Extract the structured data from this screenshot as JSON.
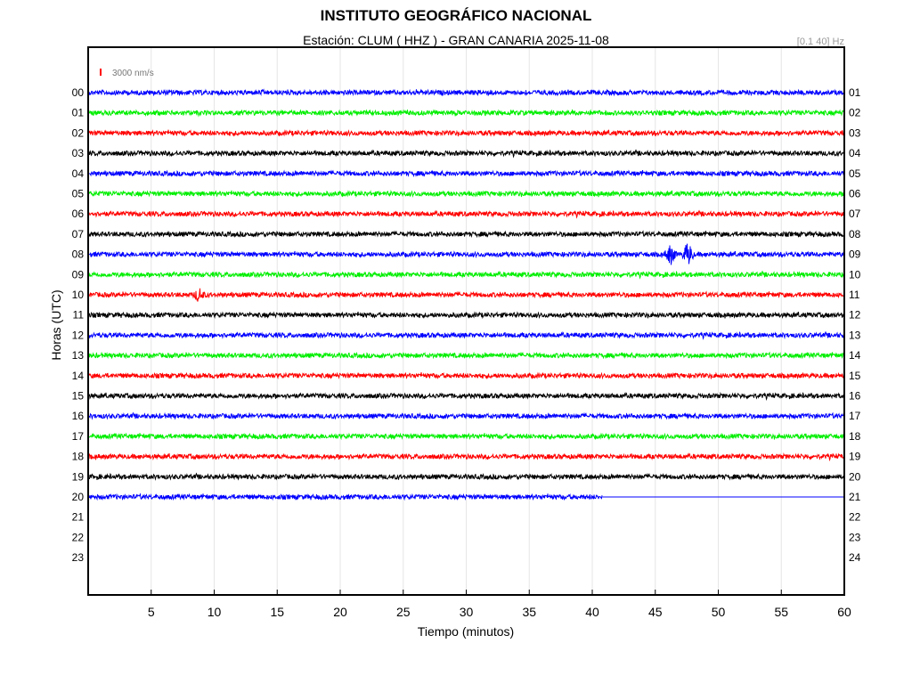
{
  "chart_data": {
    "type": "line",
    "title": "INSTITUTO GEOGRÁFICO NACIONAL",
    "station_label": "Estación:",
    "station": "CLUM ( HHZ ) - GRAN CANARIA",
    "date": "2025-11-08",
    "filter": "[0.1 40] Hz",
    "scale_label": "3000 nm/s",
    "xlabel": "Tiempo (minutos)",
    "ylabel": "Horas (UTC)",
    "xlim": [
      0,
      60
    ],
    "x_ticks": [
      5,
      10,
      15,
      20,
      25,
      30,
      35,
      40,
      45,
      50,
      55,
      60
    ],
    "left_hour_labels": [
      "00",
      "01",
      "02",
      "03",
      "04",
      "05",
      "06",
      "07",
      "08",
      "09",
      "10",
      "11",
      "12",
      "13",
      "14",
      "15",
      "16",
      "17",
      "18",
      "19",
      "20",
      "21",
      "22",
      "23"
    ],
    "right_hour_labels": [
      "01",
      "02",
      "03",
      "04",
      "05",
      "06",
      "07",
      "08",
      "09",
      "10",
      "11",
      "12",
      "13",
      "14",
      "15",
      "16",
      "17",
      "18",
      "19",
      "20",
      "21",
      "22",
      "23",
      "24"
    ],
    "grid": true,
    "trace_colors": [
      "#0000ff",
      "#00ee00",
      "#ff0000",
      "#000000"
    ],
    "data_end_hour": 20,
    "data_end_minute": 40.8,
    "events": [
      {
        "hour": 8,
        "minute": 46.2,
        "amplitude": 2.6
      },
      {
        "hour": 8,
        "minute": 47.6,
        "amplitude": 3.2
      },
      {
        "hour": 10,
        "minute": 8.8,
        "amplitude": 1.6
      }
    ]
  }
}
